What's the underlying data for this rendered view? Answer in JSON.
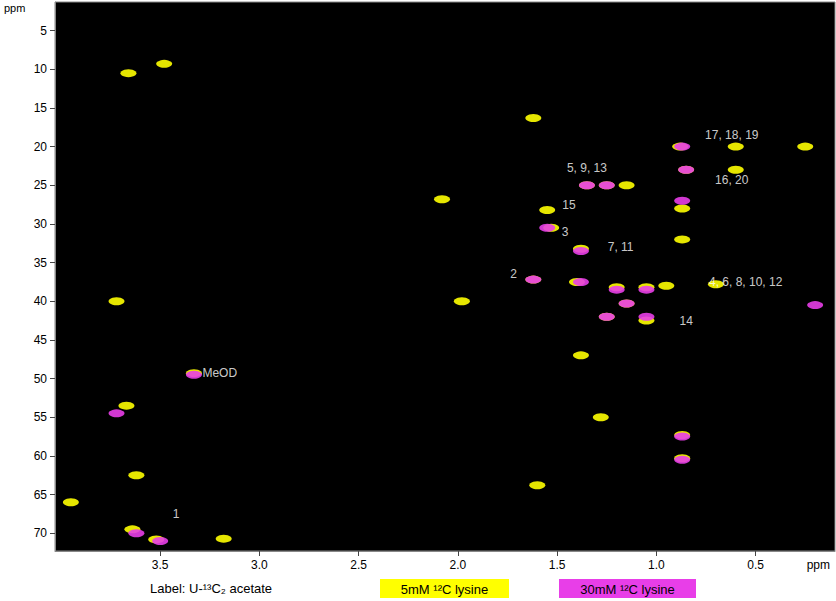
{
  "chart_data": {
    "type": "scatter",
    "caption": "Label: U-¹³C₂ acetate",
    "xlabel": "ppm",
    "ylabel": "ppm",
    "xlim": [
      4.03,
      0.1
    ],
    "ylim": [
      72.3,
      1.3
    ],
    "xticks": [
      3.5,
      {
        "value": 3,
        "label": "3.0"
      },
      2.5,
      {
        "value": 2,
        "label": "2.0"
      },
      1.5,
      {
        "value": 1,
        "label": "1.0"
      },
      0.5
    ],
    "yticks": [
      5,
      10,
      15,
      20,
      25,
      30,
      35,
      40,
      45,
      50,
      55,
      60,
      65,
      70
    ],
    "grid": false,
    "legend": "bottom",
    "marker": "ellipse",
    "series": [
      {
        "name": "5mM ¹²C lysine",
        "color": "#ffff00",
        "values": [
          [
            3.48,
            9.3
          ],
          [
            3.66,
            10.5
          ],
          [
            1.62,
            16.3
          ],
          [
            0.88,
            20.0
          ],
          [
            0.85,
            23.0
          ],
          [
            0.6,
            20.0
          ],
          [
            0.6,
            23.0
          ],
          [
            0.25,
            20.0
          ],
          [
            0.87,
            28.0
          ],
          [
            0.87,
            32.0
          ],
          [
            1.25,
            25.0
          ],
          [
            1.35,
            25.0
          ],
          [
            1.15,
            25.0
          ],
          [
            1.55,
            28.2
          ],
          [
            1.53,
            30.5
          ],
          [
            1.38,
            33.2
          ],
          [
            1.62,
            37.2
          ],
          [
            1.4,
            37.5
          ],
          [
            1.2,
            38.2
          ],
          [
            1.05,
            38.2
          ],
          [
            0.95,
            38.0
          ],
          [
            0.7,
            37.8
          ],
          [
            1.15,
            40.3
          ],
          [
            1.25,
            42.0
          ],
          [
            1.05,
            42.5
          ],
          [
            1.98,
            40.0
          ],
          [
            2.08,
            26.8
          ],
          [
            3.72,
            40.0
          ],
          [
            1.38,
            47.0
          ],
          [
            1.28,
            55.0
          ],
          [
            0.87,
            57.3
          ],
          [
            0.87,
            60.3
          ],
          [
            3.67,
            53.5
          ],
          [
            3.64,
            69.5
          ],
          [
            3.52,
            70.8
          ],
          [
            3.95,
            66.0
          ],
          [
            1.6,
            63.8
          ],
          [
            3.62,
            62.5
          ],
          [
            3.18,
            70.7
          ],
          [
            3.33,
            49.3
          ]
        ]
      },
      {
        "name": "30mM ¹²C lysine",
        "color": "#e83ee8",
        "values": [
          [
            3.33,
            49.5
          ],
          [
            3.72,
            54.5
          ],
          [
            3.62,
            70.0
          ],
          [
            3.5,
            71.0
          ],
          [
            0.87,
            20.0
          ],
          [
            0.85,
            23.0
          ],
          [
            0.87,
            27.0
          ],
          [
            1.25,
            25.0
          ],
          [
            1.35,
            25.0
          ],
          [
            1.55,
            30.5
          ],
          [
            1.38,
            33.5
          ],
          [
            1.62,
            37.2
          ],
          [
            1.38,
            37.5
          ],
          [
            1.2,
            38.5
          ],
          [
            1.05,
            38.5
          ],
          [
            1.15,
            40.3
          ],
          [
            1.25,
            42.0
          ],
          [
            1.05,
            42.0
          ],
          [
            0.87,
            57.5
          ],
          [
            0.87,
            60.5
          ],
          [
            0.2,
            40.5
          ]
        ]
      }
    ],
    "annotations": [
      {
        "text": "1",
        "x": 3.42,
        "y": 67.5
      },
      {
        "text": "2",
        "x": 1.72,
        "y": 36.5
      },
      {
        "text": "3",
        "x": 1.46,
        "y": 31.0
      },
      {
        "text": "5, 9, 13",
        "x": 1.35,
        "y": 22.8
      },
      {
        "text": "7, 11",
        "x": 1.18,
        "y": 33.0
      },
      {
        "text": "15",
        "x": 1.44,
        "y": 27.5
      },
      {
        "text": "17, 18, 19",
        "x": 0.62,
        "y": 18.5
      },
      {
        "text": "16, 20",
        "x": 0.62,
        "y": 24.3
      },
      {
        "text": "4, 6, 8, 10, 12",
        "x": 0.55,
        "y": 37.5
      },
      {
        "text": "14",
        "x": 0.85,
        "y": 42.5
      },
      {
        "text": "MeOD",
        "x": 3.2,
        "y": 49.3
      }
    ]
  }
}
